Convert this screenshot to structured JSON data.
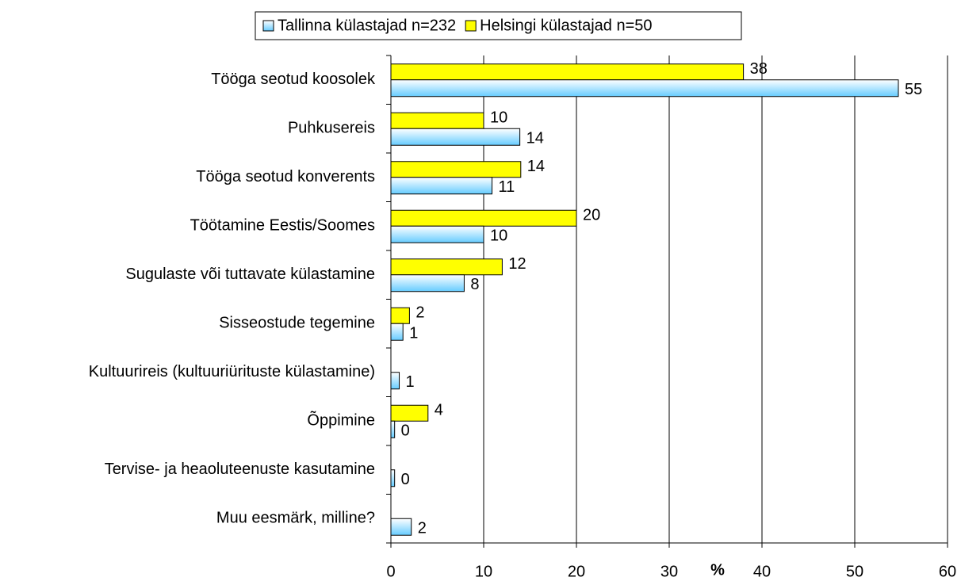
{
  "chart_data": {
    "type": "bar",
    "orientation": "horizontal",
    "x_label": "%",
    "categories": [
      "Tööga seotud koosolek",
      "Puhkusereis",
      "Tööga seotud konverents",
      "Töötamine Eestis/Soomes",
      "Sugulaste või tuttavate külastamine",
      "Sisseostude tegemine",
      "Kultuurireis (kultuuriürituste külastamine)",
      "Õppimine",
      "Tervise- ja heaoluteenuste kasutamine",
      "Muu eesmärk, milline?"
    ],
    "series": [
      {
        "name": "Tallinna külastajad n=232",
        "color": "#66ccff",
        "values": [
          54.7,
          13.9,
          10.9,
          10,
          7.9,
          1.3,
          0.9,
          0.4,
          0.4,
          2.2
        ],
        "value_labels": [
          "55",
          "14",
          "11",
          "10",
          "8",
          "1",
          "1",
          "0",
          "0",
          "2"
        ]
      },
      {
        "name": "Helsingi külastajad n=50",
        "color": "#ffff00",
        "values": [
          38,
          10,
          14,
          20,
          12,
          2,
          null,
          4,
          null,
          null
        ]
      }
    ],
    "xlim": [
      0,
      60
    ],
    "xticks": [
      0,
      10,
      20,
      30,
      40,
      50,
      60
    ],
    "grid": true,
    "legend": "top"
  }
}
